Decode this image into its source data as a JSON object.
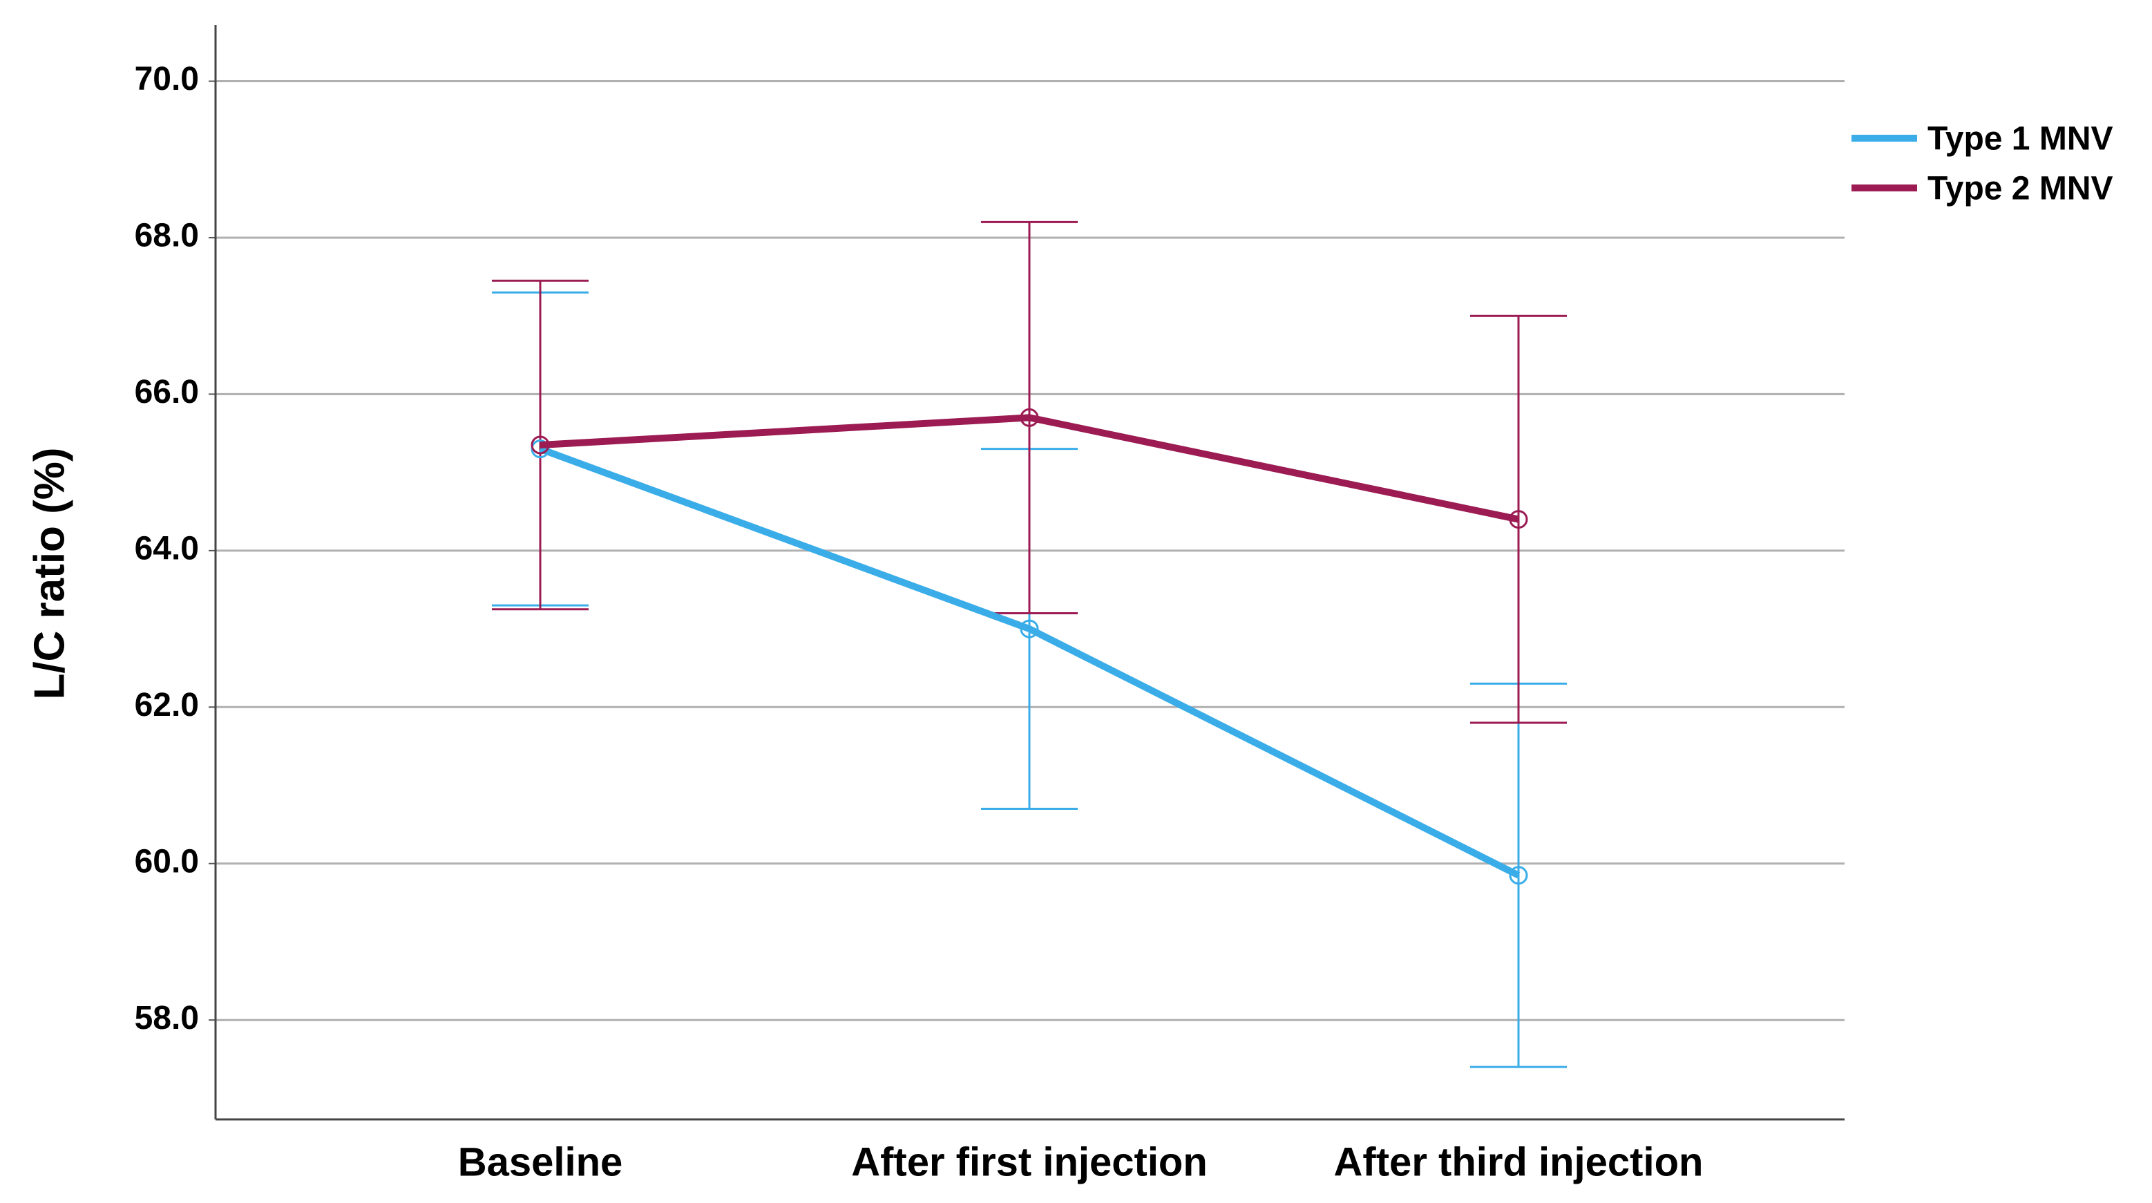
{
  "chart_data": {
    "type": "line",
    "y_label": "L/C ratio (%)",
    "categories": [
      "Baseline",
      "After  first injection",
      "After third injection"
    ],
    "series": [
      {
        "name": "Type 1 MNV",
        "color": "#3aade9",
        "values": [
          65.3,
          63.0,
          59.85
        ],
        "errors": [
          2.0,
          2.3,
          2.45
        ]
      },
      {
        "name": "Type 2 MNV",
        "color": "#9b1b52",
        "values": [
          65.35,
          65.7,
          64.4
        ],
        "errors": [
          2.1,
          2.5,
          2.6
        ]
      }
    ],
    "ylim": [
      56.73,
      70.72
    ],
    "yticks": [
      {
        "value": 58,
        "label": "58.0"
      },
      {
        "value": 60,
        "label": "60.0"
      },
      {
        "value": 62,
        "label": "62.0"
      },
      {
        "value": 64,
        "label": "64.0"
      },
      {
        "value": 66,
        "label": "66.0"
      },
      {
        "value": 68,
        "label": "68.0"
      },
      {
        "value": 70,
        "label": "70.0"
      }
    ],
    "grid": true,
    "legend": "top-right"
  }
}
